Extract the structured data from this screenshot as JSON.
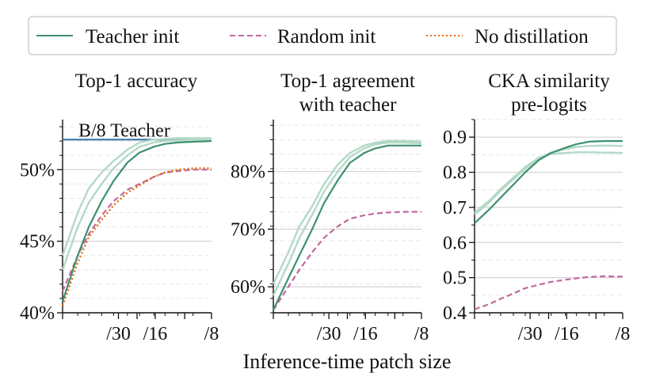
{
  "figure": {
    "xlabel": "Inference-time patch size",
    "colors": {
      "teacher_init": "#3c9070",
      "teacher_init_faint": "#b3d9c6",
      "random_init": "#c0699e",
      "no_distillation": "#e06a0a",
      "teacher_ref": "#3b73ad",
      "grid_major": "#d4d4d4",
      "grid_minor": "#e6e6e6"
    }
  },
  "legend": {
    "items": [
      {
        "label": "Teacher init",
        "style": "solid",
        "color": "#3c9070"
      },
      {
        "label": "Random init",
        "style": "dashed",
        "color": "#c0699e"
      },
      {
        "label": "No distillation",
        "style": "dotted",
        "color": "#e06a0a"
      }
    ]
  },
  "chart_data": [
    {
      "type": "line",
      "title": [
        "Top-1 accuracy"
      ],
      "xlabel": "Inference-time patch size",
      "ylabel": "",
      "xscale": "log (reversed patch size)",
      "xlim": [
        48,
        8
      ],
      "ylim": [
        40,
        53.5
      ],
      "x_tick_labels": [
        "",
        "/30",
        "",
        "/16",
        "",
        "/8"
      ],
      "y_ticks": [
        40,
        45,
        50
      ],
      "y_tick_labels": [
        "40%",
        "45%",
        "50%"
      ],
      "y_minor_step": 1,
      "reference_line": {
        "label": "B/8 Teacher",
        "y": 52.1,
        "color": "#3b73ad"
      },
      "x": [
        48,
        40,
        35,
        30,
        26,
        22,
        19,
        16,
        14,
        12,
        10,
        8
      ],
      "series": [
        {
          "name": "Teacher init",
          "style": "solid",
          "color": "#3c9070",
          "values": [
            40.8,
            44.0,
            46.0,
            47.8,
            49.2,
            50.5,
            51.2,
            51.6,
            51.8,
            51.9,
            51.95,
            52.0
          ]
        },
        {
          "name": "Teacher init (variant 1)",
          "style": "faint",
          "color": "#b3d9c6",
          "values": [
            43.0,
            46.0,
            47.7,
            49.0,
            50.1,
            51.0,
            51.6,
            51.9,
            52.0,
            52.05,
            52.1,
            52.1
          ]
        },
        {
          "name": "Teacher init (variant 2)",
          "style": "faint",
          "color": "#b3d9c6",
          "values": [
            44.0,
            47.0,
            48.7,
            49.8,
            50.6,
            51.4,
            51.9,
            52.1,
            52.15,
            52.2,
            52.2,
            52.2
          ]
        },
        {
          "name": "Random init",
          "style": "dashed",
          "color": "#c0699e",
          "values": [
            41.5,
            44.0,
            45.5,
            46.8,
            47.8,
            48.6,
            49.0,
            49.5,
            49.8,
            49.9,
            50.0,
            50.0
          ]
        },
        {
          "name": "No distillation",
          "style": "dotted",
          "color": "#e06a0a",
          "values": [
            40.5,
            43.5,
            45.3,
            46.5,
            47.5,
            48.4,
            48.9,
            49.5,
            49.8,
            50.0,
            50.1,
            50.1
          ]
        }
      ]
    },
    {
      "type": "line",
      "title": [
        "Top-1 agreement",
        "with teacher"
      ],
      "xlabel": "Inference-time patch size",
      "ylabel": "",
      "xscale": "log (reversed patch size)",
      "xlim": [
        48,
        8
      ],
      "ylim": [
        55.5,
        89
      ],
      "x_tick_labels": [
        "",
        "/30",
        "",
        "/16",
        "",
        "/8"
      ],
      "y_ticks": [
        60,
        70,
        80
      ],
      "y_tick_labels": [
        "60%",
        "70%",
        "80%"
      ],
      "y_minor_step": 2.5,
      "x": [
        48,
        40,
        35,
        30,
        26,
        22,
        19,
        16,
        14,
        12,
        10,
        8
      ],
      "series": [
        {
          "name": "Teacher init",
          "style": "solid",
          "color": "#3c9070",
          "values": [
            56.0,
            61.5,
            65.5,
            70.0,
            74.5,
            78.5,
            81.5,
            83.2,
            84.0,
            84.5,
            84.5,
            84.5
          ]
        },
        {
          "name": "Teacher init (variant 1)",
          "style": "faint",
          "color": "#b3d9c6",
          "values": [
            58.5,
            64.0,
            68.5,
            72.5,
            76.5,
            80.0,
            82.5,
            84.0,
            84.7,
            85.0,
            85.0,
            84.9
          ]
        },
        {
          "name": "Teacher init (variant 2)",
          "style": "faint",
          "color": "#b3d9c6",
          "values": [
            60.5,
            66.0,
            70.5,
            74.0,
            77.8,
            81.2,
            83.2,
            84.5,
            85.0,
            85.3,
            85.3,
            85.2
          ]
        },
        {
          "name": "Random init",
          "style": "dashed",
          "color": "#c0699e",
          "values": [
            56.0,
            60.0,
            63.0,
            66.0,
            68.5,
            70.5,
            71.8,
            72.4,
            72.7,
            72.9,
            73.0,
            73.0
          ]
        }
      ]
    },
    {
      "type": "line",
      "title": [
        "CKA similarity",
        "pre-logits"
      ],
      "xlabel": "Inference-time patch size",
      "ylabel": "",
      "xscale": "log (reversed patch size)",
      "xlim": [
        48,
        8
      ],
      "ylim": [
        0.4,
        0.95
      ],
      "x_tick_labels": [
        "",
        "/30",
        "",
        "/16",
        "",
        "/8"
      ],
      "y_ticks": [
        0.4,
        0.5,
        0.6,
        0.7,
        0.8,
        0.9
      ],
      "y_tick_labels": [
        "0.4",
        "0.5",
        "0.6",
        "0.7",
        "0.8",
        "0.9"
      ],
      "y_minor_step": 0.05,
      "x": [
        48,
        40,
        35,
        30,
        26,
        22,
        19,
        16,
        14,
        12,
        10,
        8
      ],
      "series": [
        {
          "name": "Teacher init",
          "style": "solid",
          "color": "#3c9070",
          "values": [
            0.655,
            0.695,
            0.728,
            0.765,
            0.8,
            0.835,
            0.855,
            0.87,
            0.88,
            0.887,
            0.889,
            0.889
          ]
        },
        {
          "name": "Teacher init (variant 1)",
          "style": "faint",
          "color": "#b3d9c6",
          "values": [
            0.68,
            0.715,
            0.748,
            0.78,
            0.81,
            0.84,
            0.856,
            0.866,
            0.872,
            0.875,
            0.876,
            0.875
          ]
        },
        {
          "name": "Teacher init (variant 2)",
          "style": "faint",
          "color": "#b3d9c6",
          "values": [
            0.685,
            0.72,
            0.752,
            0.785,
            0.815,
            0.842,
            0.852,
            0.855,
            0.857,
            0.857,
            0.856,
            0.855
          ]
        },
        {
          "name": "Random init",
          "style": "dashed",
          "color": "#c0699e",
          "values": [
            0.41,
            0.425,
            0.44,
            0.455,
            0.47,
            0.48,
            0.488,
            0.494,
            0.498,
            0.502,
            0.504,
            0.503
          ]
        }
      ]
    }
  ]
}
